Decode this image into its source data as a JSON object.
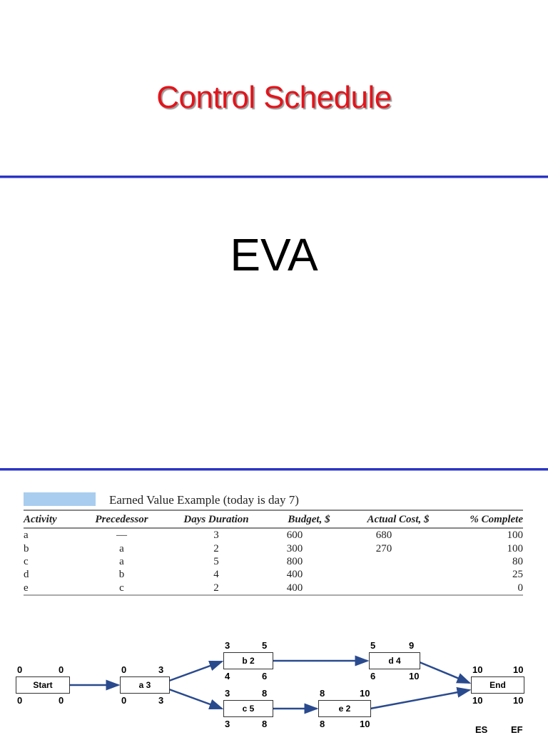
{
  "slide": {
    "title": "Control Schedule",
    "subtitle": "EVA"
  },
  "table": {
    "caption": "Earned Value Example (today is day 7)",
    "headers": [
      "Activity",
      "Precedessor",
      "Days Duration",
      "Budget, $",
      "Actual Cost, $",
      "% Complete"
    ],
    "rows": [
      [
        "a",
        "—",
        "3",
        "600",
        "680",
        "100"
      ],
      [
        "b",
        "a",
        "2",
        "300",
        "270",
        "100"
      ],
      [
        "c",
        "a",
        "5",
        "800",
        "",
        "80"
      ],
      [
        "d",
        "b",
        "4",
        "400",
        "",
        "25"
      ],
      [
        "e",
        "c",
        "2",
        "400",
        "",
        "0"
      ]
    ]
  },
  "network": {
    "arrow_color": "#2a4a8e",
    "nodes": {
      "start": {
        "label": "Start",
        "es": "0",
        "ef": "0",
        "ls": "0",
        "lf": "0"
      },
      "a": {
        "label": "a 3",
        "es": "0",
        "ef": "3",
        "ls": "0",
        "lf": "3"
      },
      "b": {
        "label": "b 2",
        "es": "3",
        "ef": "5",
        "ls": "4",
        "lf": "6"
      },
      "c": {
        "label": "c 5",
        "es": "3",
        "ef": "8",
        "ls": "3",
        "lf": "8"
      },
      "d": {
        "label": "d 4",
        "es": "5",
        "ef": "9",
        "ls": "6",
        "lf": "10"
      },
      "e": {
        "label": "e 2",
        "es": "8",
        "ef": "10",
        "ls": "8",
        "lf": "10"
      },
      "end": {
        "label": "End",
        "es": "10",
        "ef": "10",
        "ls": "10",
        "lf": "10"
      }
    },
    "legend": {
      "es": "ES",
      "ef": "EF"
    }
  }
}
